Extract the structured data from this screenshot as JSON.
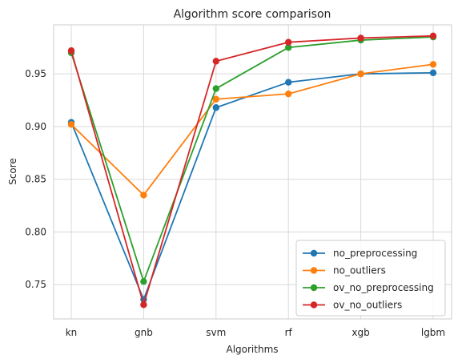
{
  "chart_data": {
    "type": "line",
    "title": "Algorithm score comparison",
    "xlabel": "Algorithms",
    "ylabel": "Score",
    "categories": [
      "kn",
      "gnb",
      "svm",
      "rf",
      "xgb",
      "lgbm"
    ],
    "yticks": [
      "0.75",
      "0.80",
      "0.85",
      "0.90",
      "0.95"
    ],
    "ytick_values": [
      0.75,
      0.8,
      0.85,
      0.9,
      0.95
    ],
    "ylim": [
      0.7175,
      0.9965
    ],
    "grid": true,
    "legend_position": "lower-right",
    "series": [
      {
        "name": "no_preprocessing",
        "color": "#1f77b4",
        "values": [
          0.904,
          0.736,
          0.918,
          0.942,
          0.95,
          0.951
        ]
      },
      {
        "name": "no_outliers",
        "color": "#ff7f0e",
        "values": [
          0.902,
          0.835,
          0.926,
          0.931,
          0.95,
          0.959
        ]
      },
      {
        "name": "ov_no_preprocessing",
        "color": "#2ca02c",
        "values": [
          0.97,
          0.753,
          0.936,
          0.975,
          0.982,
          0.985
        ]
      },
      {
        "name": "ov_no_outliers",
        "color": "#d62728",
        "values": [
          0.972,
          0.731,
          0.962,
          0.98,
          0.984,
          0.986
        ]
      }
    ]
  }
}
